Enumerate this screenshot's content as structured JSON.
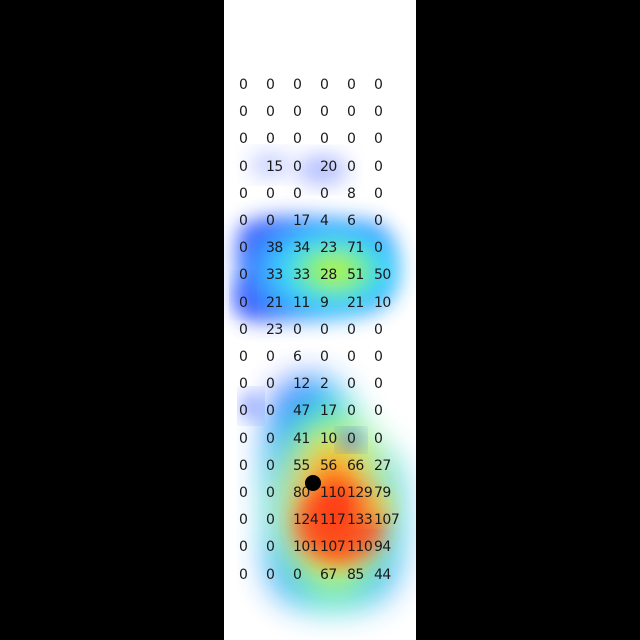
{
  "grid": {
    "rows": [
      [
        "0",
        "0",
        "0",
        "0",
        "0",
        "0"
      ],
      [
        "0",
        "0",
        "0",
        "0",
        "0",
        "0"
      ],
      [
        "0",
        "0",
        "0",
        "0",
        "0",
        "0"
      ],
      [
        "0",
        "15",
        "0",
        "20",
        "0",
        "0"
      ],
      [
        "0",
        "0",
        "0",
        "0",
        "8",
        "0"
      ],
      [
        "0",
        "0",
        "17",
        "4",
        "6",
        "0"
      ],
      [
        "0",
        "38",
        "34",
        "23",
        "71",
        "0"
      ],
      [
        "0",
        "33",
        "33",
        "28",
        "51",
        "50"
      ],
      [
        "0",
        "21",
        "11",
        "9",
        "21",
        "10"
      ],
      [
        "0",
        "23",
        "0",
        "0",
        "0",
        "0"
      ],
      [
        "0",
        "0",
        "6",
        "0",
        "0",
        "0"
      ],
      [
        "0",
        "0",
        "12",
        "2",
        "0",
        "0"
      ],
      [
        "0",
        "0",
        "47",
        "17",
        "0",
        "0"
      ],
      [
        "0",
        "0",
        "41",
        "10",
        "0",
        "0"
      ],
      [
        "0",
        "0",
        "55",
        "56",
        "66",
        "27"
      ],
      [
        "0",
        "0",
        "80",
        "110",
        "129",
        "79"
      ],
      [
        "0",
        "0",
        "124",
        "117",
        "133",
        "107"
      ],
      [
        "0",
        "0",
        "101",
        "107",
        "110",
        "94"
      ],
      [
        "0",
        "0",
        "0",
        "67",
        "85",
        "44"
      ]
    ]
  },
  "colors": {
    "low": "#2f5bff",
    "mid": "#35d3ff",
    "warm": "#f4f236",
    "high": "#ff2a12",
    "pointer": "#000000"
  }
}
